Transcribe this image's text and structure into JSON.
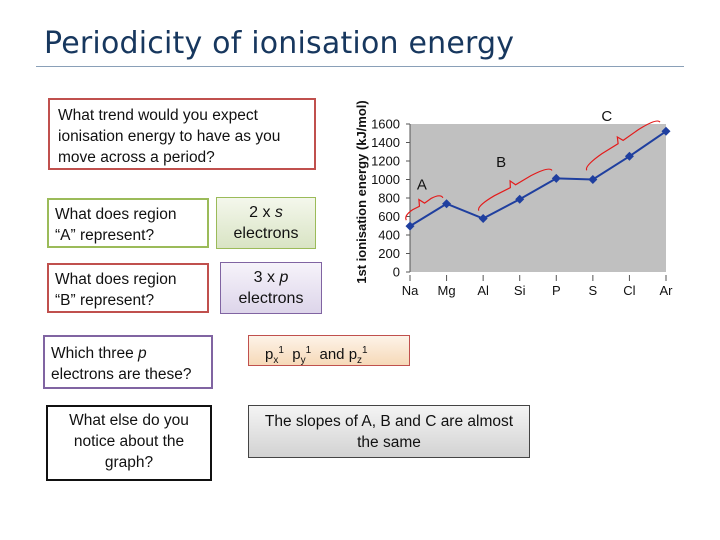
{
  "slide": {
    "title": "Periodicity of ionisation energy"
  },
  "questions": {
    "trend": "What trend would you expect ionisation energy to have as you move across a period?",
    "region_a": "What does region “A” represent?",
    "region_b": "What does region “B” represent?",
    "p_electrons_prefix": "Which three ",
    "p_electrons_p": "p",
    "p_electrons_suffix": " electrons are these?",
    "else_notice": "What else do you notice about the graph?"
  },
  "answers": {
    "region_a_num": "2 x ",
    "region_a_letter": "s",
    "region_a_word": "electrons",
    "region_b_num": "3 x ",
    "region_b_letter": "p",
    "region_b_word": "electrons",
    "orbital_x": "p",
    "orbital_x_sub": "x",
    "orbital_y": "p",
    "orbital_y_sub": "y",
    "orbital_z": "p",
    "orbital_z_sub": "z",
    "orbital_sup": "1",
    "orbital_and": "and",
    "slopes": "The slopes of A, B and C are almost the same"
  },
  "colors": {
    "title": "#17375e",
    "plot_background": "#c0c0c0",
    "series_line": "#1f3f9f",
    "bracket": "#e31b1b"
  },
  "chart_data": {
    "type": "line",
    "ylabel": "1st ionisation energy (kJ/mol)",
    "xlabel": "",
    "categories": [
      "Na",
      "Mg",
      "Al",
      "Si",
      "P",
      "S",
      "Cl",
      "Ar"
    ],
    "series": [
      {
        "values": [
          496,
          738,
          578,
          787,
          1012,
          1000,
          1251,
          1521
        ]
      }
    ],
    "ylim": [
      0,
      1600
    ],
    "yticks": [
      "0",
      "200",
      "400",
      "600",
      "800",
      "1000",
      "1200",
      "1400",
      "1600"
    ],
    "grid": false,
    "annotations": [
      "A",
      "B",
      "C"
    ]
  }
}
